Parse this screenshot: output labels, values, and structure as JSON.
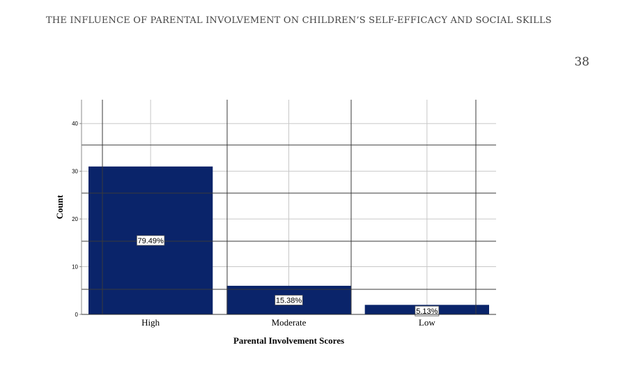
{
  "header": {
    "running_head": "THE INFLUENCE OF PARENTAL INVOLVEMENT ON CHILDREN’S SELF-EFFICACY AND SOCIAL SKILLS",
    "page_number": "38"
  },
  "chart_data": {
    "type": "bar",
    "title": "",
    "xlabel": "Parental Involvement Scores",
    "ylabel": "Count",
    "categories": [
      "High",
      "Moderate",
      "Low"
    ],
    "values": [
      31,
      6,
      2
    ],
    "data_labels": [
      "79.49%",
      "15.38%",
      "5.13%"
    ],
    "ylim": [
      0,
      45
    ],
    "yticks": [
      0,
      10,
      20,
      30,
      40
    ],
    "grid": true,
    "bar_color": "#0a246a"
  }
}
